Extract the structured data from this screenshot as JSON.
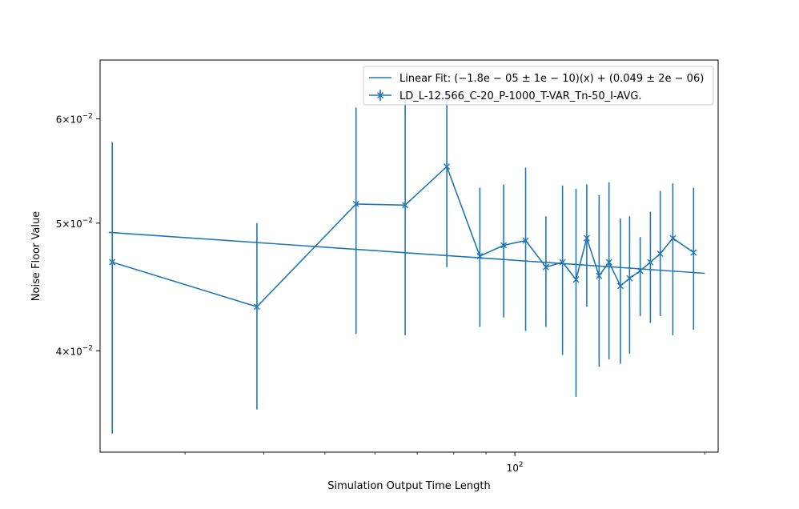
{
  "chart_data": {
    "type": "line",
    "title": "",
    "xlabel": "Simulation Output Time Length",
    "ylabel": "Noise Floor Value",
    "x_scale": "log",
    "y_scale": "log",
    "xlim": [
      22,
      210
    ],
    "ylim": [
      0.0335,
      0.0665
    ],
    "grid": false,
    "legend_position": "upper-right",
    "color": "#1f77b4",
    "x_major_ticks": [
      {
        "value": 100,
        "label": "10^2"
      }
    ],
    "x_minor_ticks": [
      30,
      40,
      50,
      60,
      70,
      80,
      90,
      200
    ],
    "y_major_ticks": [
      {
        "value": 0.04,
        "label": "4×10^−2"
      },
      {
        "value": 0.05,
        "label": "5×10^−2"
      },
      {
        "value": 0.06,
        "label": "6×10^−2"
      }
    ],
    "series": [
      {
        "name": "Linear Fit: (−1.8e − 05 ± 1e − 10)(x) + (0.049 ± 2e − 06)",
        "kind": "line",
        "x": [
          22.7,
          200
        ],
        "y": [
          0.0492,
          0.0458
        ]
      },
      {
        "name": "LD_L-12.566_C-20_P-1000_T-VAR_Tn-50_I-AVG.",
        "kind": "errorbar",
        "marker": "x",
        "x": [
          23,
          39,
          56,
          67,
          78,
          88,
          96,
          104,
          112,
          119,
          125,
          130,
          136,
          141,
          147,
          152,
          158,
          164,
          170,
          178,
          192
        ],
        "y": [
          0.0467,
          0.0432,
          0.0517,
          0.0516,
          0.0552,
          0.0472,
          0.0481,
          0.0485,
          0.0463,
          0.0467,
          0.0453,
          0.0487,
          0.0456,
          0.0467,
          0.0448,
          0.0454,
          0.046,
          0.0467,
          0.0474,
          0.0487,
          0.0475
        ],
        "yerr_low": [
          0.0346,
          0.0361,
          0.0412,
          0.0411,
          0.0463,
          0.0417,
          0.0424,
          0.0414,
          0.0417,
          0.0397,
          0.0369,
          0.0432,
          0.0389,
          0.0394,
          0.0391,
          0.0398,
          0.0425,
          0.042,
          0.0425,
          0.0411,
          0.0415
        ],
        "yerr_high": [
          0.0576,
          0.05,
          0.0612,
          0.0624,
          0.0629,
          0.0532,
          0.0535,
          0.0551,
          0.0506,
          0.0534,
          0.0531,
          0.0535,
          0.0525,
          0.0537,
          0.0504,
          0.0506,
          0.0488,
          0.051,
          0.0529,
          0.0536,
          0.0532
        ]
      }
    ]
  }
}
